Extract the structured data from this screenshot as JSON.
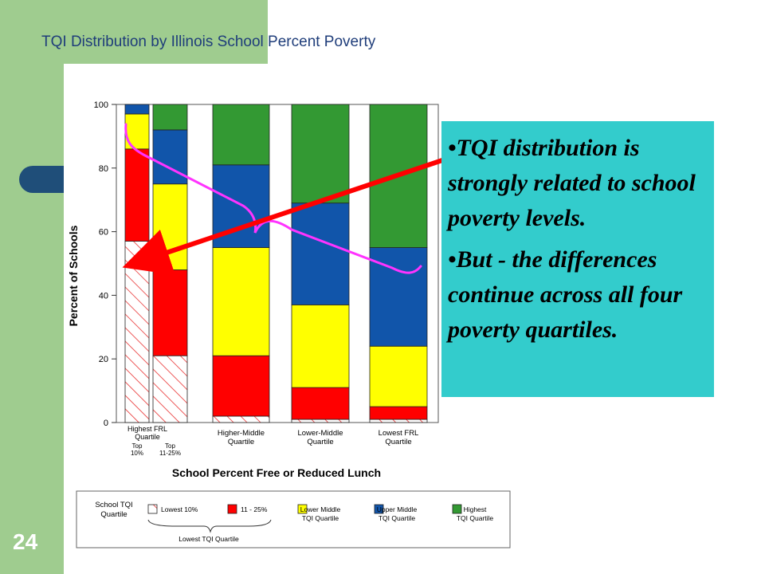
{
  "page": {
    "title": "TQI Distribution by Illinois School Percent Poverty",
    "page_number": "24"
  },
  "callout": {
    "bullets": [
      "•TQI distribution is strongly related to school poverty levels.",
      "•But - the differences continue across all four poverty quartiles."
    ]
  },
  "chart_data": {
    "type": "bar",
    "stacked": true,
    "xlabel": "School Percent Free or Reduced Lunch",
    "ylabel": "Percent of Schools",
    "ylim": [
      0,
      100
    ],
    "yticks": [
      0,
      20,
      40,
      60,
      80,
      100
    ],
    "categories": [
      {
        "label": [
          "Top",
          "10%"
        ],
        "group": 0
      },
      {
        "label": [
          "Top",
          "11-25%"
        ],
        "group": 0
      },
      {
        "label": [
          "Higher-Middle",
          "Quartile"
        ],
        "group": 1
      },
      {
        "label": [
          "Lower-Middle",
          "Quartile"
        ],
        "group": 2
      },
      {
        "label": [
          "Lowest FRL",
          "Quartile"
        ],
        "group": 3
      }
    ],
    "group_labels": [
      [
        "Highest FRL",
        "Quartile"
      ],
      [],
      [],
      []
    ],
    "series": [
      {
        "name": "Lowest 10%",
        "color": "#ffffff",
        "pattern": "hatch",
        "values": [
          57,
          21,
          2,
          1,
          1
        ]
      },
      {
        "name": "11 - 25%",
        "color": "#ff0000",
        "values": [
          29,
          27,
          19,
          10,
          4
        ]
      },
      {
        "name": "Lower Middle TQI Quartile",
        "color": "#ffff00",
        "values": [
          11,
          27,
          34,
          26,
          19
        ]
      },
      {
        "name": "Upper Middle TQI Quartile",
        "color": "#1155aa",
        "values": [
          3,
          17,
          26,
          32,
          31
        ]
      },
      {
        "name": "Highest TQI Quartile",
        "color": "#339933",
        "values": [
          0,
          8,
          19,
          31,
          45
        ]
      }
    ],
    "legend": {
      "title": [
        "School TQI",
        "Quartile"
      ],
      "placement": "bottom",
      "items": [
        {
          "label": [
            "Lowest 10%"
          ],
          "series": 0
        },
        {
          "label": [
            "11 - 25%"
          ],
          "series": 1
        },
        {
          "label": [
            "Lower Middle",
            "TQI Quartile"
          ],
          "series": 2
        },
        {
          "label": [
            "Upper Middle",
            "TQI Quartile"
          ],
          "series": 3
        },
        {
          "label": [
            "Highest",
            "TQI Quartile"
          ],
          "series": 4
        }
      ],
      "brace_label": "Lowest TQI Quartile"
    },
    "annotations": [
      {
        "type": "arrow",
        "color": "#ff0000",
        "from": "callout",
        "to": "Top 10% bar, top of hatched segment"
      },
      {
        "type": "curve",
        "color": "#ff33ff",
        "desc": "trend line across bars"
      }
    ]
  }
}
